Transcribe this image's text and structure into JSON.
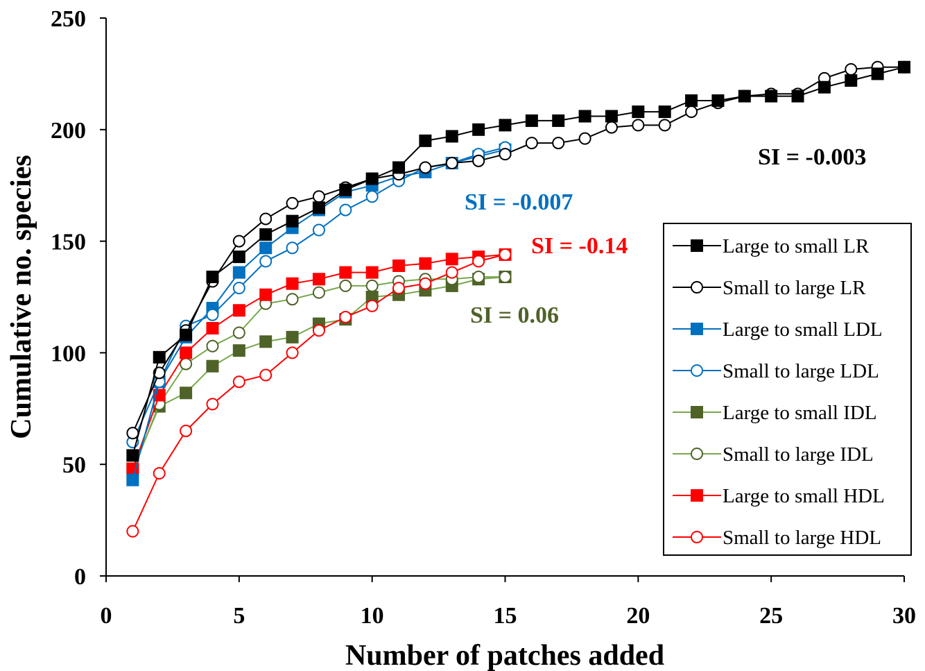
{
  "chart_data": {
    "type": "line",
    "xlabel": "Number of patches added",
    "ylabel": "Cumulative no. species",
    "xlim": [
      0,
      30
    ],
    "ylim": [
      0,
      250
    ],
    "xticks": [
      "0",
      "5",
      "10",
      "15",
      "20",
      "25",
      "30"
    ],
    "yticks": [
      "0",
      "50",
      "100",
      "150",
      "200",
      "250"
    ],
    "grid": false,
    "legend_position": "right",
    "series": [
      {
        "name": "Large to small LR",
        "color": "#000000",
        "marker": "square",
        "filled": true,
        "x": [
          1,
          2,
          3,
          4,
          5,
          6,
          7,
          8,
          9,
          10,
          11,
          12,
          13,
          14,
          15,
          16,
          17,
          18,
          19,
          20,
          21,
          22,
          23,
          24,
          25,
          26,
          27,
          28,
          29,
          30
        ],
        "y": [
          54,
          98,
          108,
          134,
          143,
          153,
          159,
          165,
          173,
          178,
          183,
          195,
          197,
          200,
          202,
          204,
          204,
          206,
          206,
          208,
          208,
          213,
          213,
          215,
          215,
          215,
          219,
          222,
          225,
          228
        ]
      },
      {
        "name": "Small to large LR",
        "color": "#000000",
        "marker": "circle",
        "filled": false,
        "x": [
          1,
          2,
          3,
          4,
          5,
          6,
          7,
          8,
          9,
          10,
          11,
          12,
          13,
          14,
          15,
          16,
          17,
          18,
          19,
          20,
          21,
          22,
          23,
          24,
          25,
          26,
          27,
          28,
          29,
          30
        ],
        "y": [
          64,
          91,
          110,
          132,
          150,
          160,
          167,
          170,
          174,
          178,
          180,
          183,
          185,
          186,
          189,
          194,
          194,
          196,
          201,
          202,
          202,
          208,
          212,
          215,
          216,
          216,
          223,
          227,
          228,
          228
        ]
      },
      {
        "name": "Large to small LDL",
        "color": "#0070C0",
        "marker": "square",
        "filled": true,
        "x": [
          1,
          2,
          3,
          4,
          5,
          6,
          7,
          8,
          9,
          10,
          11,
          12,
          13,
          14,
          15
        ],
        "y": [
          43,
          87,
          107,
          120,
          136,
          147,
          156,
          164,
          172,
          175,
          179,
          181,
          185,
          188,
          191
        ]
      },
      {
        "name": "Small to large LDL",
        "color": "#0070C0",
        "marker": "circle",
        "filled": false,
        "x": [
          1,
          2,
          3,
          4,
          5,
          6,
          7,
          8,
          9,
          10,
          11,
          12,
          13,
          14,
          15
        ],
        "y": [
          60,
          87,
          112,
          117,
          129,
          141,
          147,
          155,
          164,
          170,
          177,
          183,
          185,
          189,
          192
        ]
      },
      {
        "name": "Large to small IDL",
        "color": "#4F6228",
        "line_color": "#77A84A",
        "marker": "square",
        "filled": true,
        "x": [
          1,
          2,
          3,
          4,
          5,
          6,
          7,
          8,
          9,
          10,
          11,
          12,
          13,
          14,
          15
        ],
        "y": [
          48,
          76,
          82,
          94,
          101,
          105,
          107,
          113,
          115,
          125,
          126,
          128,
          130,
          133,
          134
        ]
      },
      {
        "name": "Small to large IDL",
        "color": "#4F6228",
        "line_color": "#77A84A",
        "marker": "circle",
        "filled": false,
        "x": [
          1,
          2,
          3,
          4,
          5,
          6,
          7,
          8,
          9,
          10,
          11,
          12,
          13,
          14,
          15
        ],
        "y": [
          47,
          77,
          95,
          103,
          109,
          122,
          124,
          127,
          130,
          130,
          132,
          133,
          133,
          134,
          134
        ]
      },
      {
        "name": "Large to small HDL",
        "color": "#FF0000",
        "marker": "square",
        "filled": true,
        "x": [
          1,
          2,
          3,
          4,
          5,
          6,
          7,
          8,
          9,
          10,
          11,
          12,
          13,
          14,
          15
        ],
        "y": [
          48,
          81,
          100,
          111,
          119,
          126,
          131,
          133,
          136,
          136,
          139,
          140,
          142,
          143,
          144
        ]
      },
      {
        "name": "Small to large HDL",
        "color": "#FF0000",
        "marker": "circle",
        "filled": false,
        "x": [
          1,
          2,
          3,
          4,
          5,
          6,
          7,
          8,
          9,
          10,
          11,
          12,
          13,
          14,
          15
        ],
        "y": [
          20,
          46,
          65,
          77,
          87,
          90,
          100,
          110,
          116,
          121,
          129,
          131,
          136,
          141,
          144
        ]
      }
    ],
    "annotations": [
      {
        "text": "SI = -0.003",
        "color": "#000000"
      },
      {
        "text": "SI = -0.007",
        "color": "#0070C0"
      },
      {
        "text": "SI = -0.14",
        "color": "#FF0000"
      },
      {
        "text": "SI = 0.06",
        "color": "#4F6228"
      }
    ]
  }
}
